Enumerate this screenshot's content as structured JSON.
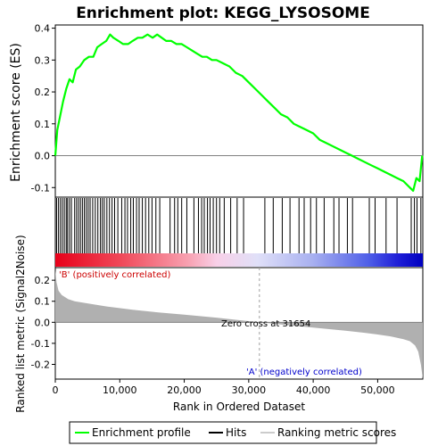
{
  "chart_data": {
    "type": "line",
    "title": "Enrichment plot: KEGG_LYSOSOME",
    "xlabel": "Rank in Ordered Dataset",
    "xlim": [
      0,
      57000
    ],
    "xticks": [
      0,
      10000,
      20000,
      30000,
      40000,
      50000
    ],
    "xtick_labels": [
      "0",
      "10,000",
      "20,000",
      "30,000",
      "40,000",
      "50,000"
    ],
    "es_panel": {
      "ylabel": "Enrichment score (ES)",
      "ylim": [
        -0.13,
        0.41
      ],
      "yticks": [
        -0.1,
        0.0,
        0.1,
        0.2,
        0.3,
        0.4
      ],
      "ytick_labels": [
        "-0.1",
        "0.0",
        "0.1",
        "0.2",
        "0.3",
        "0.4"
      ],
      "series": [
        {
          "name": "Enrichment profile",
          "color": "#00ff00",
          "x": [
            0,
            300,
            700,
            1200,
            1700,
            2200,
            2700,
            3200,
            3800,
            4500,
            5200,
            5900,
            6500,
            7200,
            7900,
            8500,
            9000,
            9800,
            10500,
            11300,
            12000,
            12800,
            13500,
            14300,
            15100,
            15800,
            16500,
            17200,
            18000,
            18800,
            19600,
            20400,
            21200,
            22000,
            22800,
            23500,
            24300,
            25000,
            26000,
            27000,
            28000,
            29000,
            30000,
            31000,
            32000,
            33000,
            34000,
            35000,
            36000,
            37000,
            38000,
            39000,
            40000,
            41000,
            42000,
            43000,
            44000,
            45000,
            46000,
            47000,
            48000,
            49000,
            50000,
            51000,
            52000,
            53000,
            54000,
            55000,
            55500,
            56000,
            56500,
            56900
          ],
          "y": [
            0.0,
            0.08,
            0.12,
            0.17,
            0.21,
            0.24,
            0.23,
            0.27,
            0.28,
            0.3,
            0.31,
            0.31,
            0.34,
            0.35,
            0.36,
            0.38,
            0.37,
            0.36,
            0.35,
            0.35,
            0.36,
            0.37,
            0.37,
            0.38,
            0.37,
            0.38,
            0.37,
            0.36,
            0.36,
            0.35,
            0.35,
            0.34,
            0.33,
            0.32,
            0.31,
            0.31,
            0.3,
            0.3,
            0.29,
            0.28,
            0.26,
            0.25,
            0.23,
            0.21,
            0.19,
            0.17,
            0.15,
            0.13,
            0.12,
            0.1,
            0.09,
            0.08,
            0.07,
            0.05,
            0.04,
            0.03,
            0.02,
            0.01,
            0.0,
            -0.01,
            -0.02,
            -0.03,
            -0.04,
            -0.05,
            -0.06,
            -0.07,
            -0.08,
            -0.1,
            -0.11,
            -0.07,
            -0.08,
            0.0
          ]
        }
      ]
    },
    "hits_panel": {
      "legend_name": "Hits",
      "bar_left_color": "#ff0000",
      "bar_right_color": "#0000ff",
      "hit_positions": [
        200,
        500,
        800,
        1100,
        1400,
        1700,
        1900,
        2200,
        2500,
        3000,
        3300,
        3600,
        3900,
        4200,
        4500,
        4800,
        5100,
        5400,
        5800,
        6200,
        6600,
        7000,
        7300,
        7600,
        8000,
        8400,
        8800,
        9200,
        9700,
        10300,
        10800,
        11200,
        11700,
        12100,
        12600,
        13000,
        13500,
        14000,
        14500,
        15000,
        15600,
        16200,
        17800,
        18500,
        19000,
        19600,
        20400,
        21500,
        22200,
        22700,
        23100,
        23600,
        24000,
        24500,
        25000,
        25500,
        26200,
        27200,
        28200,
        29200,
        32500,
        33800,
        35200,
        36400,
        37800,
        38600,
        39600,
        40500,
        41700,
        43200,
        44000,
        45300,
        46100,
        48700,
        49600,
        51300,
        53000,
        55200,
        55700,
        56100,
        56700
      ]
    },
    "metric_panel": {
      "name": "Ranking metric scores",
      "ylabel": "Ranked list metric (Signal2Noise)",
      "ylim": [
        -0.27,
        0.26
      ],
      "yticks": [
        -0.2,
        -0.1,
        0.0,
        0.1,
        0.2
      ],
      "ytick_labels": [
        "-0.2",
        "-0.1",
        "0.0",
        "0.1",
        "0.2"
      ],
      "fill_color": "#b0b0b0",
      "x": [
        0,
        200,
        500,
        1000,
        2000,
        3000,
        5000,
        8000,
        12000,
        16000,
        20000,
        25000,
        28000,
        31654,
        35000,
        40000,
        45000,
        48000,
        50000,
        52000,
        54000,
        55000,
        55800,
        56300,
        56700,
        57000
      ],
      "y": [
        0.25,
        0.19,
        0.15,
        0.13,
        0.11,
        0.1,
        0.09,
        0.075,
        0.06,
        0.047,
        0.036,
        0.022,
        0.012,
        0.0,
        -0.01,
        -0.025,
        -0.04,
        -0.05,
        -0.058,
        -0.067,
        -0.08,
        -0.09,
        -0.11,
        -0.14,
        -0.2,
        -0.27
      ]
    },
    "annotations": {
      "zero_cross": "Zero cross at 31654",
      "zero_cross_x": 31654,
      "positive": "'B' (positively correlated)",
      "negative": "'A' (negatively correlated)"
    },
    "legend": {
      "placement": "bottom",
      "entries": [
        "Enrichment profile",
        "Hits",
        "Ranking metric scores"
      ]
    }
  }
}
